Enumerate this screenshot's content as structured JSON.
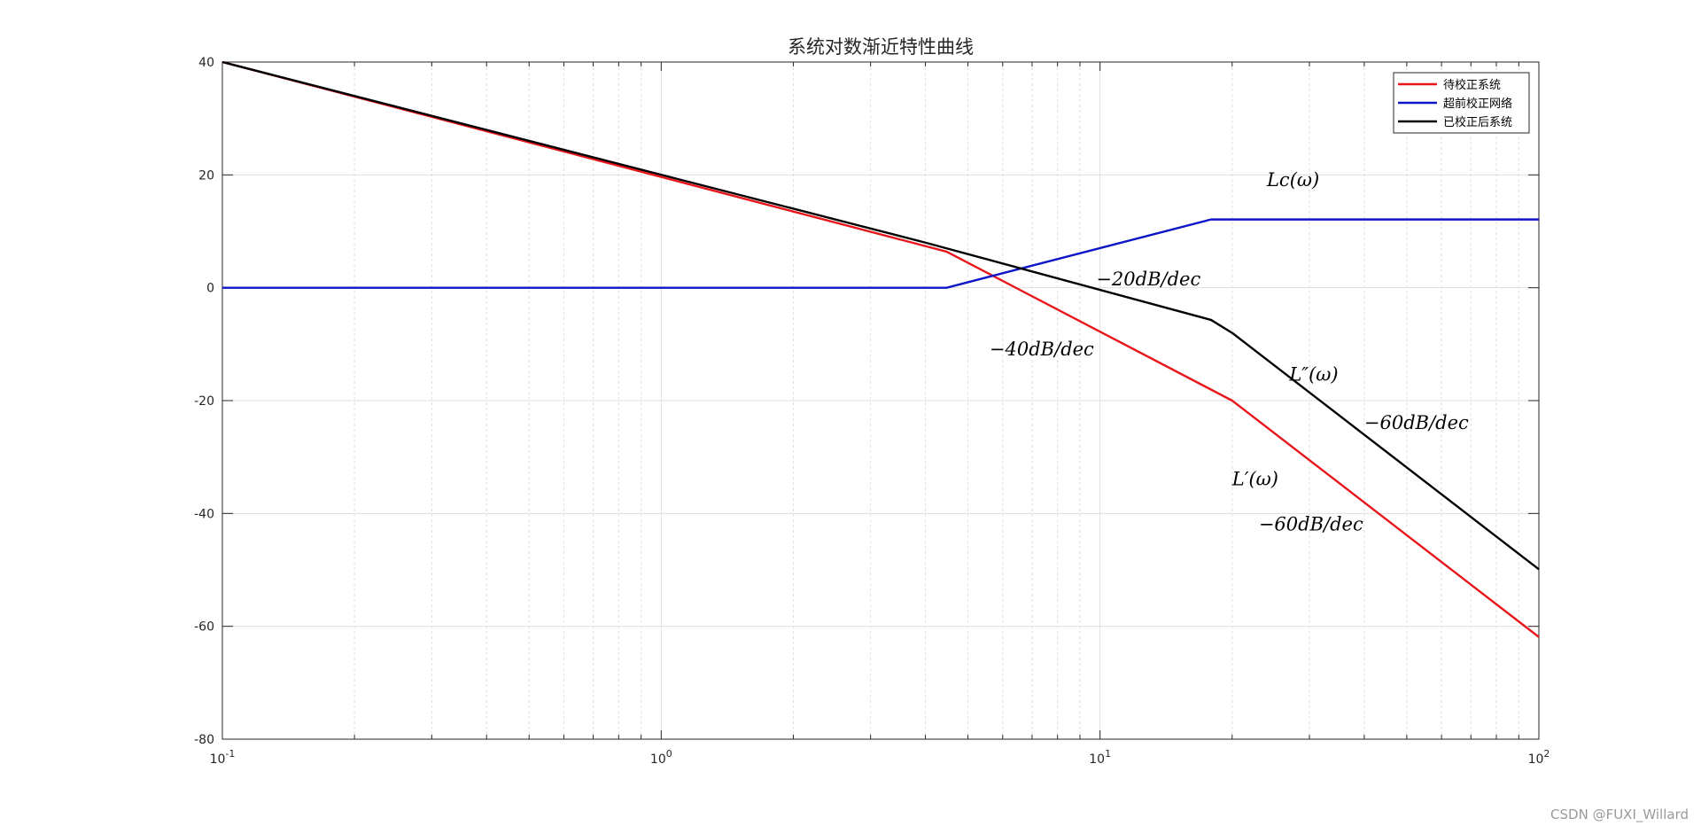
{
  "chart_data": {
    "type": "line",
    "title": "系统对数渐近特性曲线",
    "x_scale": "log",
    "xlim": [
      0.1,
      100
    ],
    "ylim": [
      -80,
      40
    ],
    "y_ticks": [
      40,
      20,
      0,
      -20,
      -40,
      -60,
      -80
    ],
    "y_tick_labels": [
      "40",
      "20",
      "0",
      "-20",
      "-40",
      "-60",
      "-80"
    ],
    "x_ticks": [
      {
        "value": 0.1,
        "base": "10",
        "exp": "-1"
      },
      {
        "value": 1,
        "base": "10",
        "exp": "0"
      },
      {
        "value": 10,
        "base": "10",
        "exp": "1"
      },
      {
        "value": 100,
        "base": "10",
        "exp": "2"
      }
    ],
    "grid": true,
    "legend_position": "top-right",
    "series": [
      {
        "name": "待校正系统",
        "color": "#e8161b",
        "points": [
          [
            0.1,
            40
          ],
          [
            4.47,
            6.4
          ],
          [
            20,
            -20
          ],
          [
            100,
            -61.9
          ]
        ]
      },
      {
        "name": "超前校正网络",
        "color": "#0d15c9",
        "points": [
          [
            0.1,
            0
          ],
          [
            4.47,
            0
          ],
          [
            17.9,
            12.1
          ],
          [
            100,
            12.1
          ]
        ]
      },
      {
        "name": "已校正后系统",
        "color": "#000000",
        "points": [
          [
            0.1,
            40
          ],
          [
            4,
            8
          ],
          [
            17.9,
            -5.7
          ],
          [
            20,
            -8
          ],
          [
            100,
            -49.9
          ]
        ]
      }
    ],
    "annotations": [
      {
        "text": "Lc(ω)",
        "x": 24,
        "y": 18
      },
      {
        "text": "−20dB/dec",
        "x": 9.8,
        "y": 0.4
      },
      {
        "text": "−40dB/dec",
        "x": 5.6,
        "y": -12
      },
      {
        "text": "L″(ω)",
        "x": 27,
        "y": -16.5
      },
      {
        "text": "−60dB/dec",
        "x": 40,
        "y": -25
      },
      {
        "text": "L′(ω)",
        "x": 20,
        "y": -35
      },
      {
        "text": "−60dB/dec",
        "x": 23,
        "y": -43
      }
    ]
  },
  "watermark": "CSDN @FUXI_Willard"
}
